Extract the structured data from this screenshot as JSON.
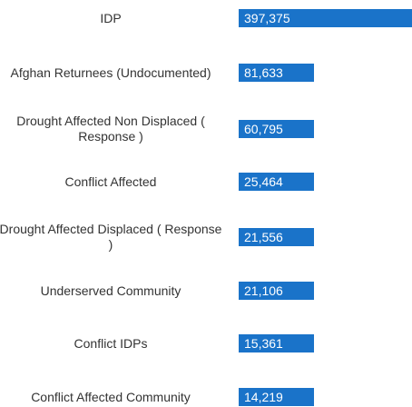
{
  "chart_data": {
    "type": "bar",
    "orientation": "horizontal",
    "title": "",
    "xlabel": "",
    "ylabel": "",
    "bar_color": "#1a73c9",
    "label_color": "#ffffff",
    "categories": [
      "IDP",
      "Afghan Returnees (Undocumented)",
      "Drought Affected Non Displaced ( Response )",
      "Conflict Affected",
      "Drought Affected Displaced ( Response )",
      "Underserved Community",
      "Conflict IDPs",
      "Conflict Affected Community"
    ],
    "values": [
      397375,
      81633,
      60795,
      25464,
      21556,
      21106,
      15361,
      14219
    ],
    "data_labels": [
      "397,375",
      "81,633",
      "60,795",
      "25,464",
      "21,556",
      "21,106",
      "15,361",
      "14,219"
    ]
  }
}
